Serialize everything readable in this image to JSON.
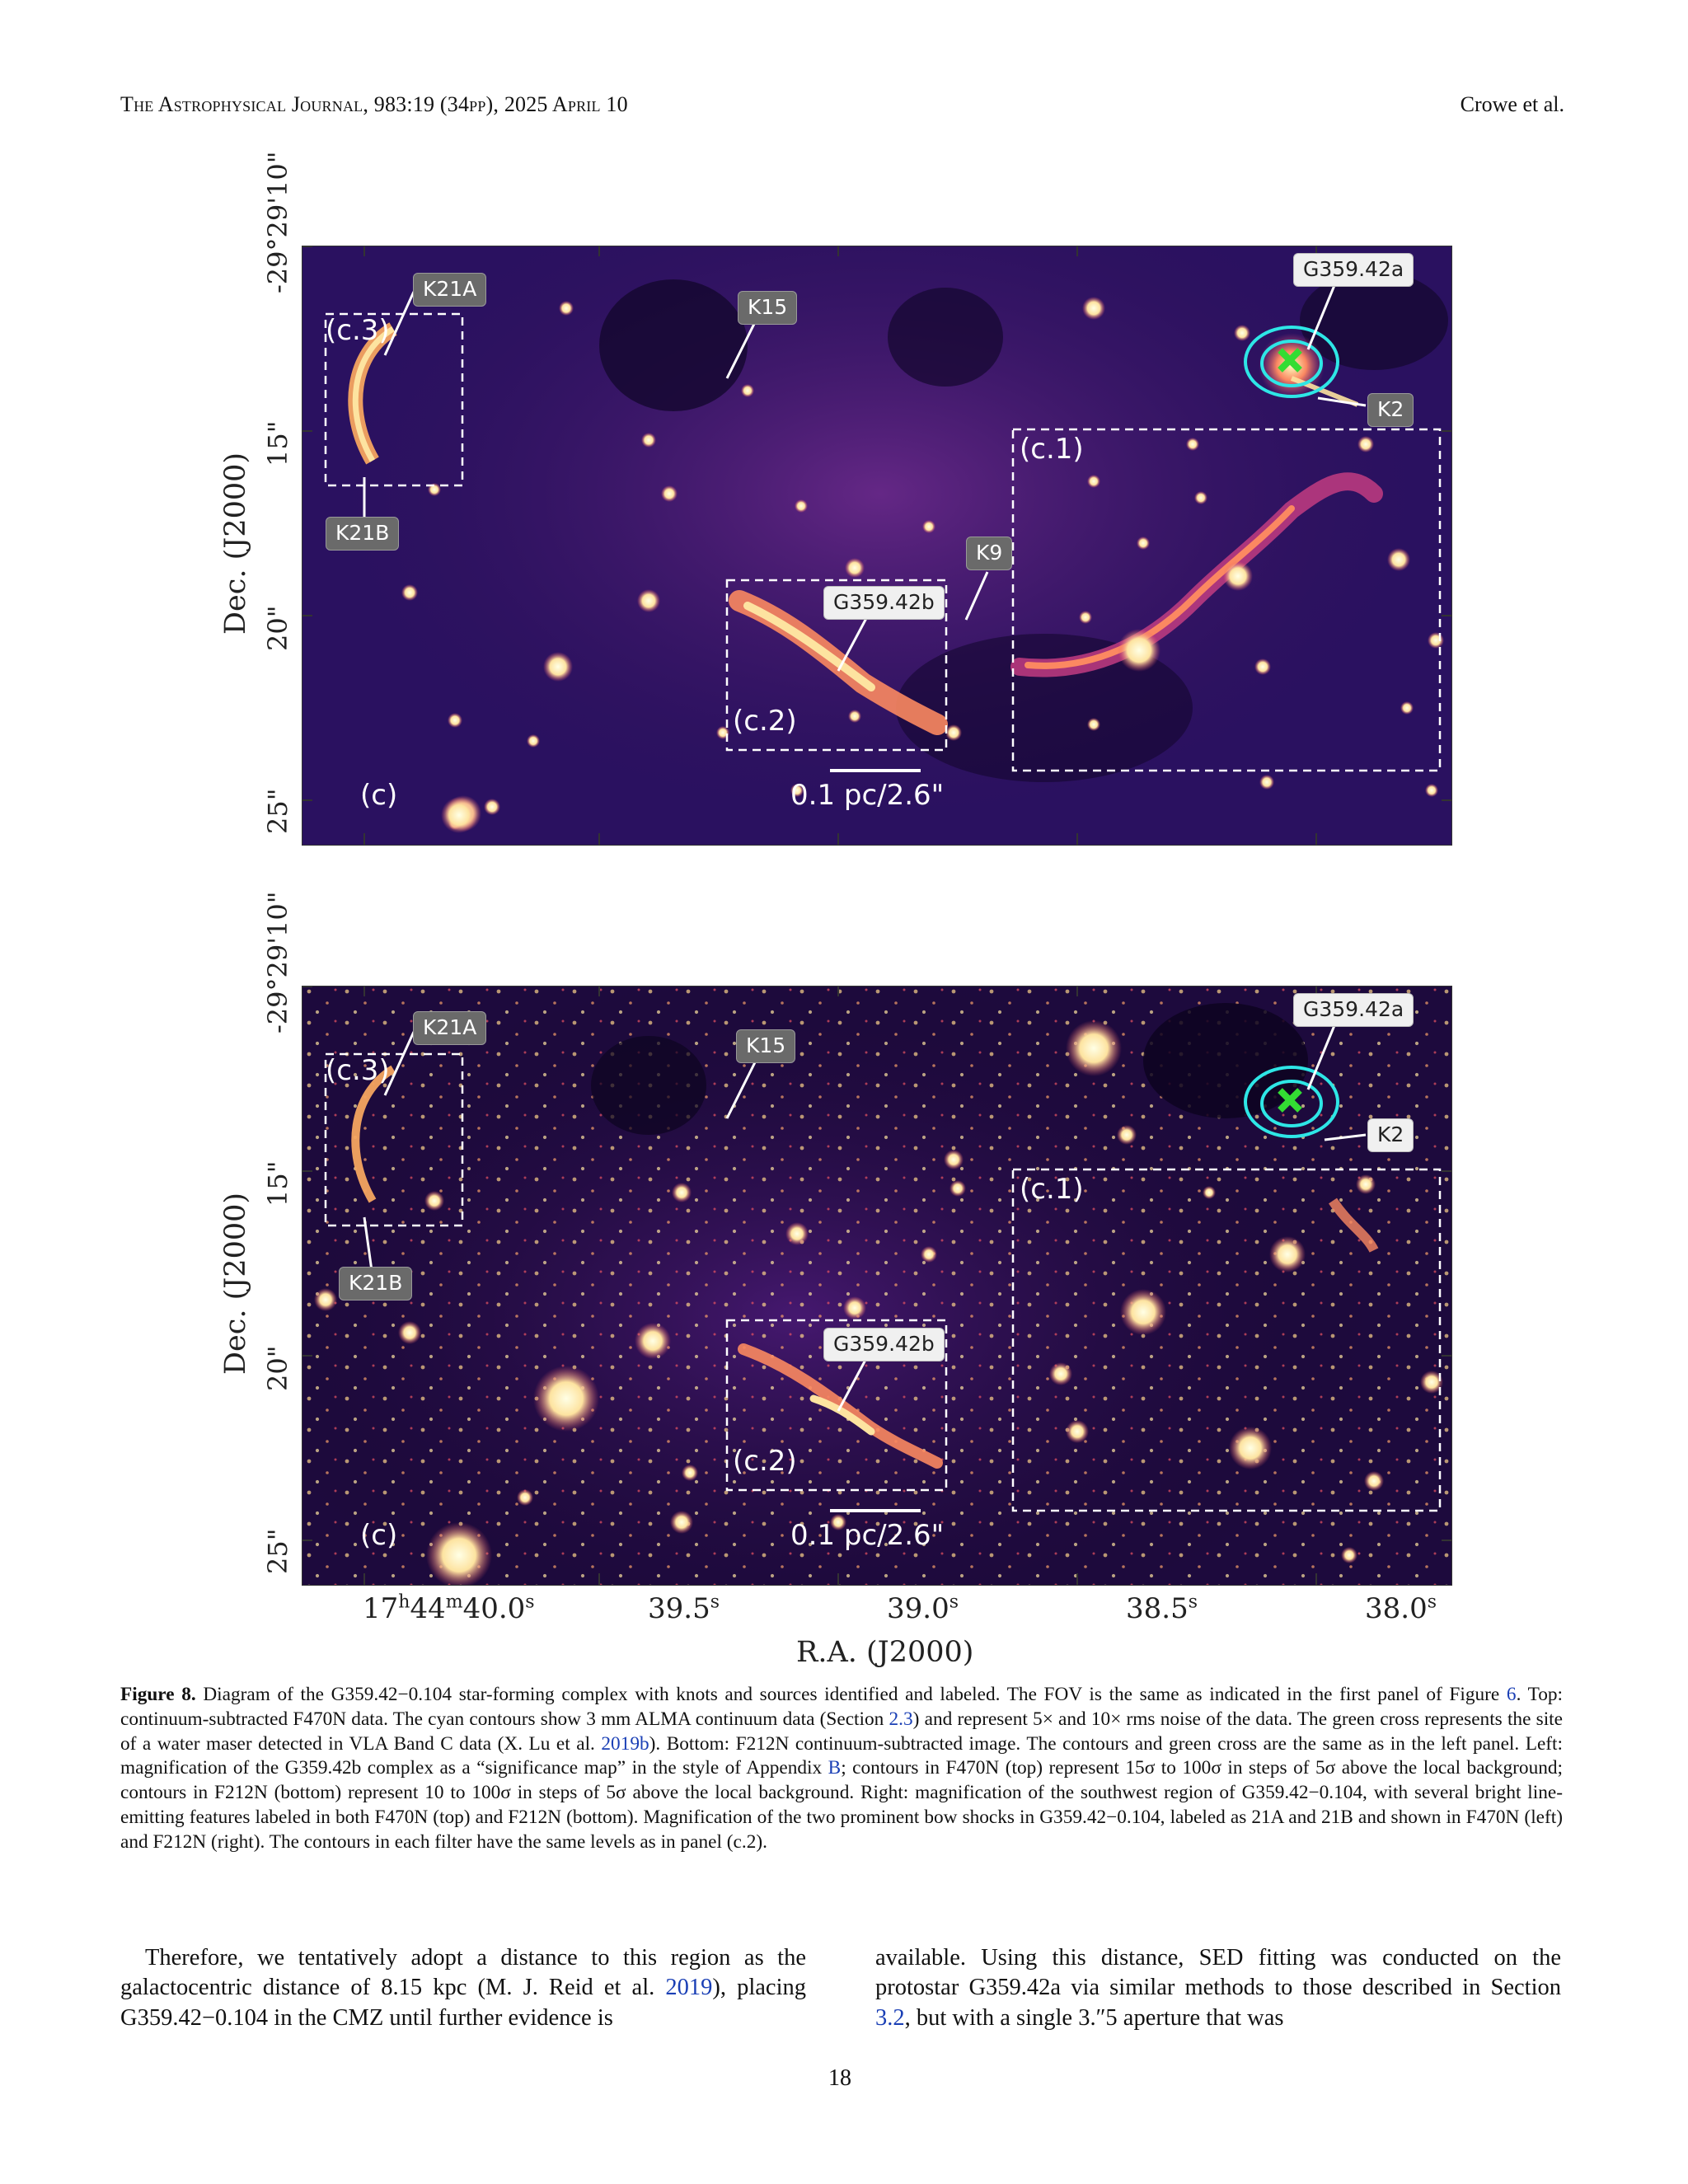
{
  "header": {
    "journal": "The Astrophysical Journal, 983:19 (34pp), 2025 April 10",
    "authors": "Crowe et al."
  },
  "figure": {
    "panel_top": {
      "labels": {
        "k21a": "K21A",
        "k21b": "K21B",
        "k15": "K15",
        "k9": "K9",
        "g359a": "G359.42a",
        "g359b": "G359.42b",
        "k2": "K2"
      },
      "regions": {
        "c1": "(c.1)",
        "c2": "(c.2)",
        "c3": "(c.3)",
        "c": "(c)"
      },
      "scalebar": "0.1 pc/2.6\""
    },
    "panel_bottom": {
      "labels": {
        "k21a": "K21A",
        "k21b": "K21B",
        "k15": "K15",
        "g359a": "G359.42a",
        "g359b": "G359.42b",
        "k2": "K2"
      },
      "regions": {
        "c1": "(c.1)",
        "c2": "(c.2)",
        "c3": "(c.3)",
        "c": "(c)"
      },
      "scalebar": "0.1 pc/2.6\""
    },
    "y_axis": {
      "label": "Dec. (J2000)",
      "ticks": [
        "-29°29'10\"",
        "15\"",
        "20\"",
        "25\""
      ]
    },
    "x_axis": {
      "label": "R.A. (J2000)",
      "ticks": [
        {
          "main": "17",
          "h": "h",
          "m_val": "44",
          "m": "m",
          "s_val": "40.0",
          "s": "s"
        },
        {
          "main": "39.5",
          "s": "s"
        },
        {
          "main": "39.0",
          "s": "s"
        },
        {
          "main": "38.5",
          "s": "s"
        },
        {
          "main": "38.0",
          "s": "s"
        }
      ]
    },
    "colors": {
      "background_dark": "#1a0a3a",
      "emission_mid": "#c23c81",
      "emission_bright": "#fcfdbf",
      "contour": "#2ee6e6",
      "maser": "#33dd33"
    }
  },
  "caption": {
    "label": "Figure 8.",
    "text_1": " Diagram of the G359.42−0.104 star-forming complex with knots and sources identified and labeled. The FOV is the same as indicated in the first panel of Figure ",
    "ref_fig": "6",
    "text_2": ". Top: continuum-subtracted F470N data. The cyan contours show 3 mm ALMA continuum data (Section ",
    "ref_sec": "2.3",
    "text_3": ") and represent 5× and 10× rms noise of the data. The green cross represents the site of a water maser detected in VLA Band C data (X. Lu et al. ",
    "ref_lu": "2019b",
    "text_4": "). Bottom: F212N continuum-subtracted image. The contours and green cross are the same as in the left panel. Left: magnification of the G359.42b complex as a “significance map” in the style of Appendix ",
    "ref_app": "B",
    "text_5": "; contours in F470N (top) represent 15σ to 100σ in steps of 5σ above the local background; contours in F212N (bottom) represent 10 to 100σ in steps of 5σ above the local background. Right: magnification of the southwest region of G359.42−0.104, with several bright line-emitting features labeled in both F470N (top) and F212N (bottom). Magnification of the two prominent bow shocks in G359.42−0.104, labeled as 21A and 21B and shown in F470N (left) and F212N (right). The contours in each filter have the same levels as in panel (c.2)."
  },
  "body": {
    "left_1": "Therefore, we tentatively adopt a distance to this region as the galactocentric distance of 8.15 kpc (M. J. Reid et al. ",
    "left_ref": "2019",
    "left_2": "), placing G359.42−0.104 in the CMZ until further evidence is",
    "right_1": "available. Using this distance, SED fitting was conducted on the protostar G359.42a via similar methods to those described in Section ",
    "right_ref": "3.2",
    "right_2": ", but with a single 3.″5 aperture that was"
  },
  "page_number": "18"
}
